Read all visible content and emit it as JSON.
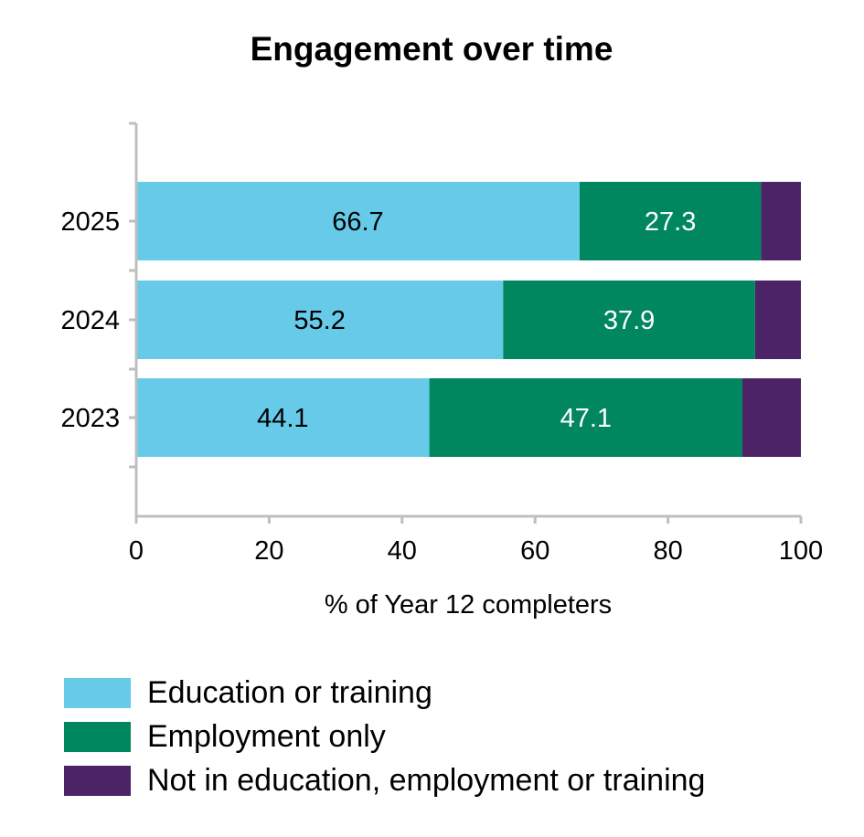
{
  "chart_data": {
    "type": "bar",
    "orientation": "horizontal",
    "stacked": true,
    "title": "Engagement over time",
    "xlabel": "% of Year 12 completers",
    "ylabel": "",
    "xlim": [
      0,
      100
    ],
    "xticks": [
      "0",
      "20",
      "40",
      "60",
      "80",
      "100"
    ],
    "categories": [
      "2025",
      "2024",
      "2023"
    ],
    "series": [
      {
        "name": "Education or training",
        "color": "#66cae8",
        "label_color": "#000000",
        "values": [
          66.7,
          55.2,
          44.1
        ],
        "labels": [
          "66.7",
          "55.2",
          "44.1"
        ]
      },
      {
        "name": "Employment only",
        "color": "#00875f",
        "label_color": "#ffffff",
        "values": [
          27.3,
          37.9,
          47.1
        ],
        "labels": [
          "27.3",
          "37.9",
          "47.1"
        ]
      },
      {
        "name": "Not in education, employment or training",
        "color": "#4b2366",
        "label_color": "#ffffff",
        "values": [
          6.0,
          6.9,
          8.8
        ],
        "labels": [
          "",
          "",
          ""
        ]
      }
    ],
    "grid": false,
    "legend_position": "bottom"
  }
}
